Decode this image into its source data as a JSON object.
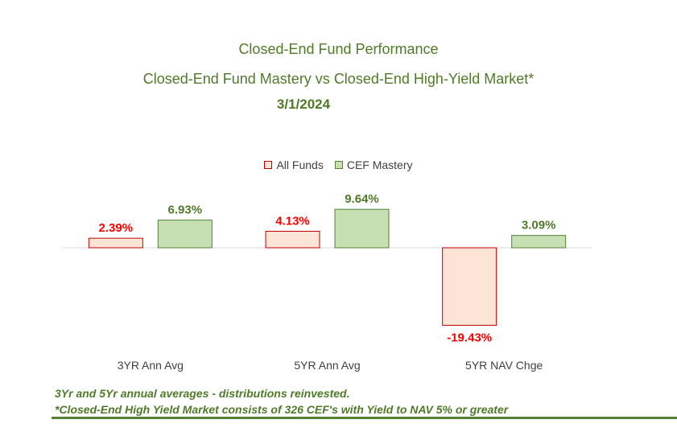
{
  "header": {
    "title": "Closed-End Fund Performance",
    "subtitle": "Closed-End Fund Mastery vs Closed-End High-Yield Market*",
    "date": "3/1/2024"
  },
  "legend": {
    "all_funds": "All Funds",
    "cef_mastery": "CEF Mastery"
  },
  "footnotes": {
    "line1": "3Yr and 5Yr annual averages - distributions reinvested.",
    "line2": "*Closed-End High Yield Market consists of 326 CEF's with Yield to NAV 5% or greater"
  },
  "colors": {
    "title": "#4f7a28",
    "all_funds_fill": "#fce4d6",
    "all_funds_stroke": "#c00000",
    "all_funds_label": "#ff0000",
    "cef_fill": "#c6e0b4",
    "cef_stroke": "#548235",
    "cef_label": "#4f7a28"
  },
  "chart_data": {
    "type": "bar",
    "categories": [
      "3YR Ann Avg",
      "5YR Ann Avg",
      "5YR NAV Chge"
    ],
    "series": [
      {
        "name": "All Funds",
        "values": [
          2.39,
          4.13,
          -19.43
        ],
        "labels": [
          "2.39%",
          "4.13%",
          "-19.43%"
        ]
      },
      {
        "name": "CEF Mastery",
        "values": [
          6.93,
          9.64,
          3.09
        ],
        "labels": [
          "6.93%",
          "9.64%",
          "3.09%"
        ]
      }
    ],
    "title": "Closed-End Fund Performance",
    "xlabel": "",
    "ylabel": "",
    "grid": false,
    "legend_position": "top"
  }
}
